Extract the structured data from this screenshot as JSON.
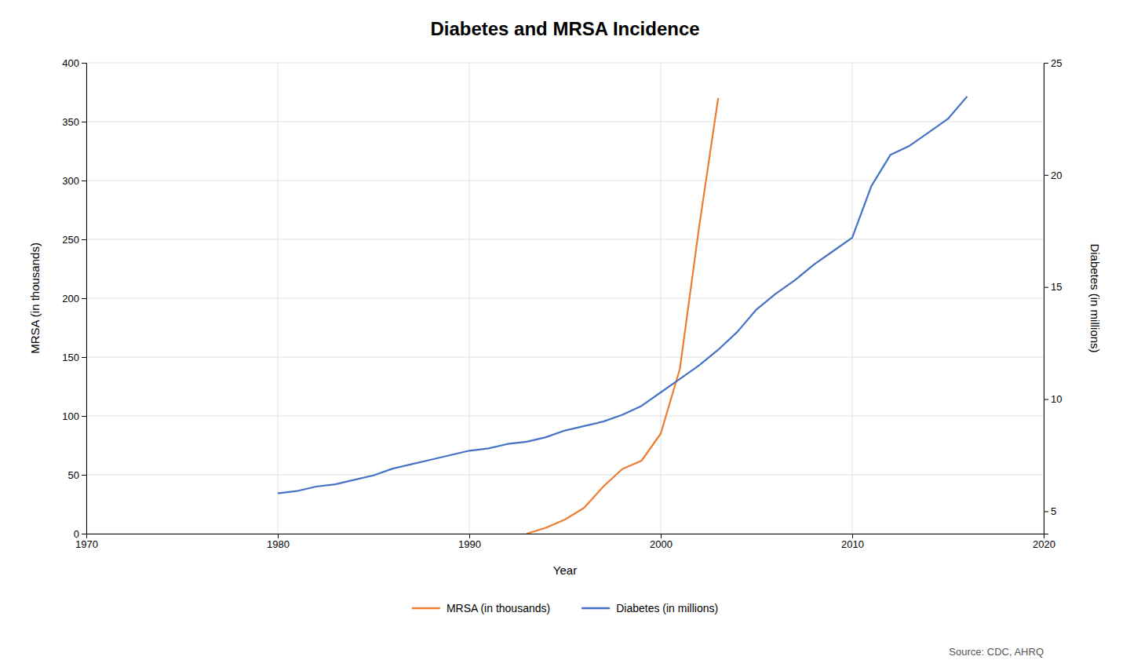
{
  "chart_data": {
    "type": "line",
    "title": "Diabetes and MRSA Incidence",
    "xlabel": "Year",
    "ylabel": "MRSA (in thousands)",
    "y2label": "Diabetes (in millions)",
    "annotations": [
      "Source: CDC, AHRQ"
    ],
    "series": [
      {
        "name": "MRSA (in thousands)",
        "color": "#ed7d31",
        "x": [
          1993,
          1994,
          1995,
          1996,
          1997,
          1998,
          1999,
          2000,
          2001,
          2002,
          2003
        ],
        "values": [
          0,
          5,
          12,
          22,
          40,
          55,
          62,
          85,
          140,
          260,
          370
        ]
      },
      {
        "name": "Diabetes (in millions)",
        "color": "#4472c4",
        "axis": "y2",
        "x": [
          1980,
          1981,
          1982,
          1983,
          1984,
          1985,
          1986,
          1987,
          1988,
          1989,
          1990,
          1991,
          1992,
          1993,
          1994,
          1995,
          1996,
          1997,
          1998,
          1999,
          2000,
          2001,
          2002,
          2003,
          2004,
          2005,
          2006,
          2007,
          2008,
          2009,
          2010,
          2011,
          2012,
          2013,
          2014,
          2015,
          2016
        ],
        "values": [
          5.8,
          5.9,
          6.1,
          6.2,
          6.4,
          6.6,
          6.9,
          7.1,
          7.3,
          7.5,
          7.7,
          7.8,
          8.0,
          8.1,
          8.3,
          8.6,
          8.8,
          9.0,
          9.3,
          9.7,
          10.3,
          10.9,
          11.5,
          12.2,
          13.0,
          14.0,
          14.7,
          15.3,
          16.0,
          16.6,
          17.2,
          19.5,
          20.9,
          21.3,
          21.9,
          22.5,
          23.5
        ]
      }
    ],
    "xlim": [
      1970,
      2020
    ],
    "xticks": [
      1970,
      1980,
      1990,
      2000,
      2010,
      2020
    ],
    "ylim": [
      0,
      400
    ],
    "yticks": [
      0,
      50,
      100,
      150,
      200,
      250,
      300,
      350,
      400
    ],
    "y2lim": [
      4,
      25
    ],
    "y2ticks": [
      5,
      10,
      15,
      20,
      25
    ],
    "grid": true,
    "legend": "bottom"
  }
}
